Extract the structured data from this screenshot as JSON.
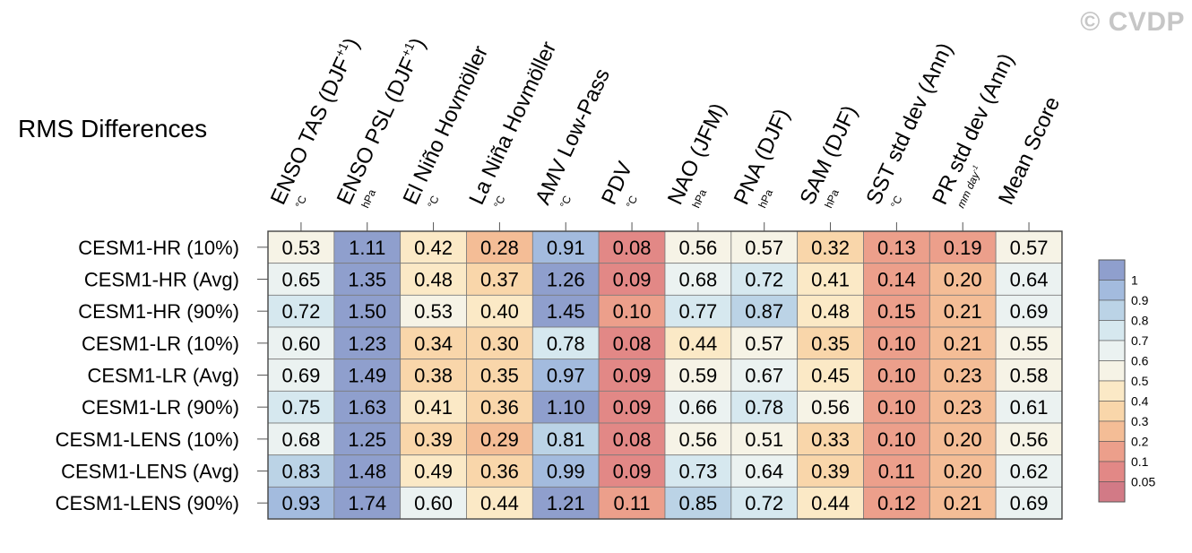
{
  "watermark": "© CVDP",
  "chart_data": {
    "type": "heatmap",
    "title": "RMS Differences",
    "columns": [
      {
        "label": "ENSO TAS (DJF",
        "sup": "+1",
        "close": ")",
        "unit": "°C"
      },
      {
        "label": "ENSO PSL (DJF",
        "sup": "+1",
        "close": ")",
        "unit": "hPa"
      },
      {
        "label": "El Niño Hovmöller",
        "sup": "",
        "close": "",
        "unit": "°C"
      },
      {
        "label": "La Niña Hovmöller",
        "sup": "",
        "close": "",
        "unit": "°C"
      },
      {
        "label": "AMV Low-Pass",
        "sup": "",
        "close": "",
        "unit": "°C"
      },
      {
        "label": "PDV",
        "sup": "",
        "close": "",
        "unit": "°C"
      },
      {
        "label": "NAO (JFM)",
        "sup": "",
        "close": "",
        "unit": "hPa"
      },
      {
        "label": "PNA (DJF)",
        "sup": "",
        "close": "",
        "unit": "hPa"
      },
      {
        "label": "SAM (DJF)",
        "sup": "",
        "close": "",
        "unit": "hPa"
      },
      {
        "label": "SST std dev (Ann)",
        "sup": "",
        "close": "",
        "unit": "°C"
      },
      {
        "label": "PR std dev (Ann)",
        "sup": "",
        "close": "",
        "unit": "mm day-1"
      },
      {
        "label": "Mean Score",
        "sup": "",
        "close": "",
        "unit": ""
      }
    ],
    "rows": [
      "CESM1-HR (10%)",
      "CESM1-HR (Avg)",
      "CESM1-HR (90%)",
      "CESM1-LR (10%)",
      "CESM1-LR (Avg)",
      "CESM1-LR (90%)",
      "CESM1-LENS (10%)",
      "CESM1-LENS (Avg)",
      "CESM1-LENS (90%)"
    ],
    "values": [
      [
        "0.53",
        "1.11",
        "0.42",
        "0.28",
        "0.91",
        "0.08",
        "0.56",
        "0.57",
        "0.32",
        "0.13",
        "0.19",
        "0.57"
      ],
      [
        "0.65",
        "1.35",
        "0.48",
        "0.37",
        "1.26",
        "0.09",
        "0.68",
        "0.72",
        "0.41",
        "0.14",
        "0.20",
        "0.64"
      ],
      [
        "0.72",
        "1.50",
        "0.53",
        "0.40",
        "1.45",
        "0.10",
        "0.77",
        "0.87",
        "0.48",
        "0.15",
        "0.21",
        "0.69"
      ],
      [
        "0.60",
        "1.23",
        "0.34",
        "0.30",
        "0.78",
        "0.08",
        "0.44",
        "0.57",
        "0.35",
        "0.10",
        "0.21",
        "0.55"
      ],
      [
        "0.69",
        "1.49",
        "0.38",
        "0.35",
        "0.97",
        "0.09",
        "0.59",
        "0.67",
        "0.45",
        "0.10",
        "0.23",
        "0.58"
      ],
      [
        "0.75",
        "1.63",
        "0.41",
        "0.36",
        "1.10",
        "0.09",
        "0.66",
        "0.78",
        "0.56",
        "0.10",
        "0.23",
        "0.61"
      ],
      [
        "0.68",
        "1.25",
        "0.39",
        "0.29",
        "0.81",
        "0.08",
        "0.56",
        "0.51",
        "0.33",
        "0.10",
        "0.20",
        "0.56"
      ],
      [
        "0.83",
        "1.48",
        "0.49",
        "0.36",
        "0.99",
        "0.09",
        "0.73",
        "0.64",
        "0.39",
        "0.11",
        "0.20",
        "0.62"
      ],
      [
        "0.93",
        "1.74",
        "0.60",
        "0.44",
        "1.21",
        "0.11",
        "0.85",
        "0.72",
        "0.44",
        "0.12",
        "0.21",
        "0.69"
      ]
    ],
    "colorbar": {
      "labels": [
        "1",
        "0.9",
        "0.8",
        "0.7",
        "0.6",
        "0.5",
        "0.4",
        "0.3",
        "0.2",
        "0.1",
        "0.05"
      ],
      "colors": [
        "#8f9fcd",
        "#a3bbde",
        "#bbd3e6",
        "#d6e8ef",
        "#ebf2f1",
        "#f6f3e6",
        "#fbe9c6",
        "#f9d6aa",
        "#f4bd96",
        "#ec9f8b",
        "#e28886",
        "#d27a86"
      ]
    }
  }
}
